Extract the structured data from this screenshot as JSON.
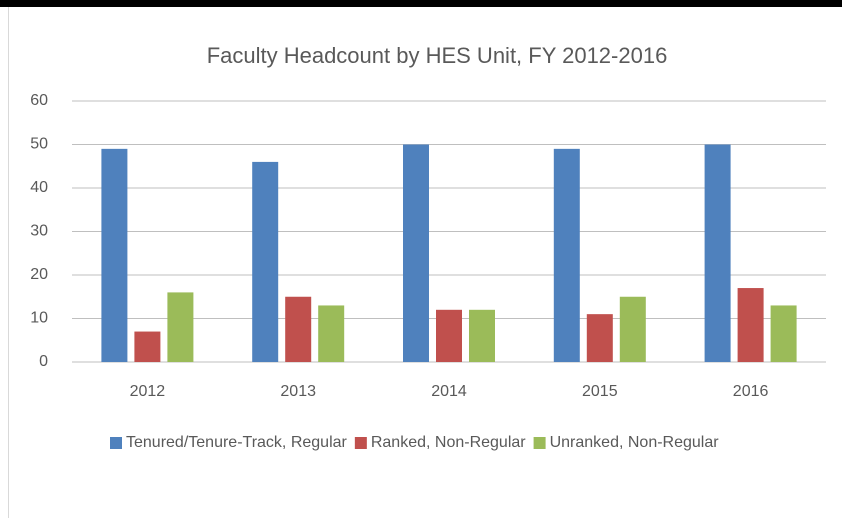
{
  "chart_data": {
    "type": "bar",
    "title": "Faculty Headcount by HES Unit, FY 2012-2016",
    "categories": [
      "2012",
      "2013",
      "2014",
      "2015",
      "2016"
    ],
    "series": [
      {
        "name": "Tenured/Tenure-Track, Regular",
        "color": "#4f81bd",
        "values": [
          49,
          46,
          50,
          49,
          50
        ]
      },
      {
        "name": "Ranked, Non-Regular",
        "color": "#c0504d",
        "values": [
          7,
          15,
          12,
          11,
          17
        ]
      },
      {
        "name": "Unranked, Non-Regular",
        "color": "#9bbb59",
        "values": [
          16,
          13,
          12,
          15,
          13
        ]
      }
    ],
    "ylim": [
      0,
      60
    ],
    "yticks": [
      0,
      10,
      20,
      30,
      40,
      50,
      60
    ],
    "grid": true,
    "legend": "bottom"
  }
}
